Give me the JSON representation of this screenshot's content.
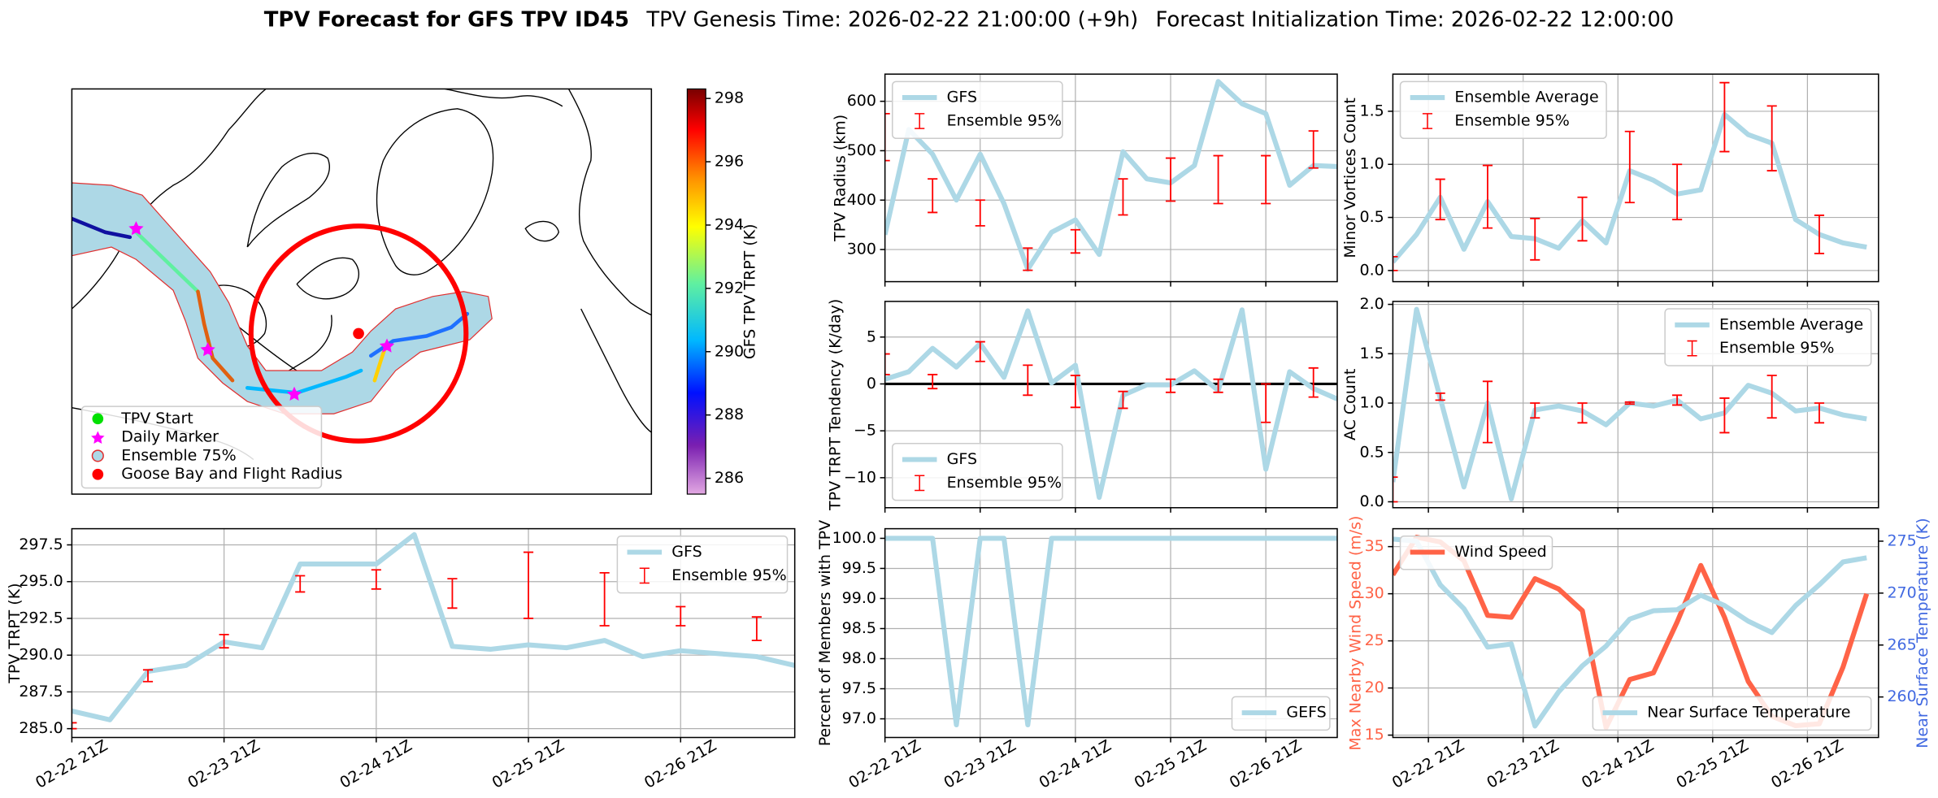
{
  "title": {
    "main": "TPV Forecast for GFS TPV ID45",
    "genesis": "TPV Genesis Time: 2026-02-22 21:00:00 (+9h)",
    "init": "Forecast Initialization Time: 2026-02-22 12:00:00"
  },
  "chart_data": [
    {
      "type": "map",
      "legend": [
        "TPV Start",
        "Daily Marker",
        "Ensemble 75%",
        "Goose Bay and Flight Radius"
      ],
      "colorbar": {
        "label": "GFS TPV TRPT (K)",
        "lim": [
          285.5,
          298.3
        ],
        "ticks": [
          286,
          288,
          290,
          292,
          294,
          296,
          298
        ]
      }
    },
    {
      "type": "line",
      "ylabel": "TPV TRPT (K)",
      "grid": true,
      "legend": "upper right",
      "xlim": [
        "02-22 21Z",
        "02-27 15Z"
      ],
      "xticks": [
        "02-22 21Z",
        "02-23 21Z",
        "02-24 21Z",
        "02-25 21Z",
        "02-26 21Z"
      ],
      "ylim": [
        284.4,
        298.6
      ],
      "yticks": [
        {
          "value": 285,
          "label": "285.0"
        },
        {
          "value": 287.5,
          "label": "287.5"
        },
        {
          "value": 290,
          "label": "290.0"
        },
        {
          "value": 292.5,
          "label": "292.5"
        },
        {
          "value": 295,
          "label": "295.0"
        },
        {
          "value": 297.5,
          "label": "297.5"
        }
      ],
      "x": [
        "02-22 21Z",
        "02-23 03Z",
        "02-23 09Z",
        "02-23 15Z",
        "02-23 21Z",
        "02-24 03Z",
        "02-24 09Z",
        "02-24 15Z",
        "02-24 21Z",
        "02-25 03Z",
        "02-25 09Z",
        "02-25 15Z",
        "02-25 21Z",
        "02-26 03Z",
        "02-26 09Z",
        "02-26 15Z",
        "02-26 21Z",
        "02-27 03Z",
        "02-27 09Z",
        "02-27 15Z"
      ],
      "series": [
        {
          "name": "GFS",
          "color": "#add8e6",
          "values": [
            286.2,
            285.6,
            288.9,
            289.3,
            290.9,
            290.5,
            296.2,
            296.2,
            296.2,
            298.2,
            290.6,
            290.4,
            290.7,
            290.5,
            291.0,
            289.9,
            290.3,
            290.1,
            289.9,
            289.3
          ]
        }
      ],
      "ensemble": {
        "name": "Ensemble 95%",
        "color": "#ff0000",
        "x": [
          "02-22 21Z",
          "02-23 09Z",
          "02-23 21Z",
          "02-24 09Z",
          "02-24 21Z",
          "02-25 09Z",
          "02-25 21Z",
          "02-26 09Z",
          "02-26 21Z",
          "02-27 09Z"
        ],
        "low": [
          285.0,
          288.2,
          290.5,
          294.3,
          294.5,
          293.2,
          292.5,
          292.0,
          292.0,
          291.0
        ],
        "high": [
          285.4,
          289.0,
          291.4,
          295.4,
          295.8,
          295.2,
          297.0,
          295.6,
          293.3,
          292.6
        ]
      }
    },
    {
      "type": "line",
      "ylabel": "TPV Radius (km)",
      "grid": true,
      "legend": "upper left",
      "xlim": [
        "02-22 21Z",
        "02-27 15Z"
      ],
      "xticks": [
        "02-22 21Z",
        "02-23 21Z",
        "02-24 21Z",
        "02-25 21Z",
        "02-26 21Z"
      ],
      "ylim": [
        235,
        655
      ],
      "yticks": [
        300,
        400,
        500,
        600
      ],
      "x": [
        "02-22 21Z",
        "02-23 03Z",
        "02-23 09Z",
        "02-23 15Z",
        "02-23 21Z",
        "02-24 03Z",
        "02-24 09Z",
        "02-24 15Z",
        "02-24 21Z",
        "02-25 03Z",
        "02-25 09Z",
        "02-25 15Z",
        "02-25 21Z",
        "02-26 03Z",
        "02-26 09Z",
        "02-26 15Z",
        "02-26 21Z",
        "02-27 03Z",
        "02-27 09Z",
        "02-27 15Z"
      ],
      "series": [
        {
          "name": "GFS",
          "color": "#add8e6",
          "values": [
            330,
            543,
            493,
            400,
            493,
            393,
            260,
            335,
            360,
            290,
            498,
            443,
            435,
            470,
            640,
            595,
            575,
            430,
            470,
            468
          ]
        }
      ],
      "ensemble": {
        "name": "Ensemble 95%",
        "color": "#ff0000",
        "x": [
          "02-22 21Z",
          "02-23 09Z",
          "02-23 21Z",
          "02-24 09Z",
          "02-24 21Z",
          "02-25 09Z",
          "02-25 21Z",
          "02-26 09Z",
          "02-26 21Z",
          "02-27 09Z"
        ],
        "low": [
          480,
          375,
          348,
          258,
          293,
          370,
          398,
          393,
          393,
          465
        ],
        "high": [
          575,
          443,
          400,
          303,
          340,
          443,
          485,
          490,
          490,
          540
        ]
      }
    },
    {
      "type": "line",
      "ylabel": "TPV TRPT Tendency (K/day)",
      "grid": true,
      "legend": "lower left",
      "reference_line": 0,
      "xlim": [
        "02-22 21Z",
        "02-27 15Z"
      ],
      "xticks": [
        "02-22 21Z",
        "02-23 21Z",
        "02-24 21Z",
        "02-25 21Z",
        "02-26 21Z"
      ],
      "ylim": [
        -13.2,
        8.8
      ],
      "yticks": [
        5,
        0,
        {
          "value": -5,
          "label": "−5"
        },
        {
          "value": -10,
          "label": "−10"
        }
      ],
      "x": [
        "02-22 21Z",
        "02-23 03Z",
        "02-23 09Z",
        "02-23 15Z",
        "02-23 21Z",
        "02-24 03Z",
        "02-24 09Z",
        "02-24 15Z",
        "02-24 21Z",
        "02-25 03Z",
        "02-25 09Z",
        "02-25 15Z",
        "02-25 21Z",
        "02-26 03Z",
        "02-26 09Z",
        "02-26 15Z",
        "02-26 21Z",
        "02-27 03Z",
        "02-27 09Z",
        "02-27 15Z"
      ],
      "series": [
        {
          "name": "GFS",
          "color": "#add8e6",
          "values": [
            0.5,
            1.3,
            3.8,
            1.8,
            4.3,
            0.7,
            7.8,
            0.1,
            2.0,
            -12.1,
            -1.2,
            -0.1,
            -0.1,
            1.4,
            -0.7,
            7.9,
            -9.1,
            1.3,
            -0.5,
            -1.6
          ]
        }
      ],
      "ensemble": {
        "name": "Ensemble 95%",
        "color": "#ff0000",
        "x": [
          "02-22 21Z",
          "02-23 09Z",
          "02-23 21Z",
          "02-24 09Z",
          "02-24 21Z",
          "02-25 09Z",
          "02-25 21Z",
          "02-26 09Z",
          "02-26 21Z",
          "02-27 09Z"
        ],
        "low": [
          1.0,
          -0.5,
          2.4,
          -1.2,
          -2.5,
          -2.6,
          -0.9,
          -0.9,
          -4.1,
          -1.4
        ],
        "high": [
          3.2,
          1.0,
          4.5,
          2.0,
          0.9,
          -0.8,
          0.5,
          0.5,
          0.0,
          1.7
        ]
      }
    },
    {
      "type": "line",
      "ylabel": "Percent of Members with TPV",
      "grid": true,
      "legend": "lower right",
      "xlim": [
        "02-22 21Z",
        "02-27 15Z"
      ],
      "xticks": [
        "02-22 21Z",
        "02-23 21Z",
        "02-24 21Z",
        "02-25 21Z",
        "02-26 21Z"
      ],
      "ylim": [
        96.69,
        100.16
      ],
      "yticks": [
        {
          "value": 97,
          "label": "97.0"
        },
        {
          "value": 97.5,
          "label": "97.5"
        },
        {
          "value": 98,
          "label": "98.0"
        },
        {
          "value": 98.5,
          "label": "98.5"
        },
        {
          "value": 99,
          "label": "99.0"
        },
        {
          "value": 99.5,
          "label": "99.5"
        },
        {
          "value": 100,
          "label": "100.0"
        }
      ],
      "x": [
        "02-22 21Z",
        "02-23 03Z",
        "02-23 09Z",
        "02-23 15Z",
        "02-23 21Z",
        "02-24 03Z",
        "02-24 09Z",
        "02-24 15Z",
        "02-24 21Z",
        "02-25 03Z",
        "02-25 09Z",
        "02-25 15Z",
        "02-25 21Z",
        "02-26 03Z",
        "02-26 09Z",
        "02-26 15Z",
        "02-26 21Z",
        "02-27 03Z",
        "02-27 09Z",
        "02-27 15Z"
      ],
      "series": [
        {
          "name": "GEFS",
          "color": "#add8e6",
          "values": [
            100,
            100,
            100,
            96.9,
            100,
            100,
            96.9,
            100,
            100,
            100,
            100,
            100,
            100,
            100,
            100,
            100,
            100,
            100,
            100,
            100
          ]
        }
      ]
    },
    {
      "type": "line",
      "ylabel": "Minor Vortices Count",
      "grid": true,
      "legend": "upper left",
      "xlim": [
        "02-22 12Z",
        "02-27 15Z"
      ],
      "xticks": [
        "02-22 21Z",
        "02-23 21Z",
        "02-24 21Z",
        "02-25 21Z",
        "02-26 21Z"
      ],
      "ylim": [
        -0.105,
        1.85
      ],
      "yticks": [
        {
          "value": 0,
          "label": "0.0"
        },
        {
          "value": 0.5,
          "label": "0.5"
        },
        {
          "value": 1,
          "label": "1.0"
        },
        {
          "value": 1.5,
          "label": "1.5"
        }
      ],
      "x": [
        "02-22 12Z",
        "02-22 18Z",
        "02-23 00Z",
        "02-23 06Z",
        "02-23 12Z",
        "02-23 18Z",
        "02-24 00Z",
        "02-24 06Z",
        "02-24 12Z",
        "02-24 18Z",
        "02-25 00Z",
        "02-25 06Z",
        "02-25 12Z",
        "02-25 18Z",
        "02-26 00Z",
        "02-26 06Z",
        "02-26 12Z",
        "02-26 18Z",
        "02-27 00Z",
        "02-27 06Z",
        "02-27 12Z"
      ],
      "series": [
        {
          "name": "Ensemble Average",
          "color": "#add8e6",
          "values": [
            0.08,
            0.34,
            0.69,
            0.2,
            0.65,
            0.32,
            0.3,
            0.21,
            0.47,
            0.26,
            0.94,
            0.85,
            0.72,
            0.76,
            1.47,
            1.28,
            1.2,
            0.48,
            0.34,
            0.26,
            0.22
          ]
        }
      ],
      "ensemble": {
        "name": "Ensemble 95%",
        "color": "#ff0000",
        "x": [
          "02-22 12Z",
          "02-23 00Z",
          "02-23 12Z",
          "02-24 00Z",
          "02-24 12Z",
          "02-25 00Z",
          "02-25 12Z",
          "02-26 00Z",
          "02-26 12Z",
          "02-27 00Z"
        ],
        "low": [
          0.0,
          0.48,
          0.4,
          0.1,
          0.28,
          0.64,
          0.48,
          1.12,
          0.94,
          0.16
        ],
        "high": [
          0.13,
          0.86,
          0.99,
          0.49,
          0.69,
          1.31,
          1.0,
          1.77,
          1.55,
          0.52
        ]
      }
    },
    {
      "type": "line",
      "ylabel": "AC Count",
      "grid": true,
      "legend": "upper right",
      "xlim": [
        "02-22 12Z",
        "02-27 15Z"
      ],
      "xticks": [
        "02-22 21Z",
        "02-23 21Z",
        "02-24 21Z",
        "02-25 21Z",
        "02-26 21Z"
      ],
      "ylim": [
        -0.06,
        2.03
      ],
      "yticks": [
        {
          "value": 0,
          "label": "0.0"
        },
        {
          "value": 0.5,
          "label": "0.5"
        },
        {
          "value": 1,
          "label": "1.0"
        },
        {
          "value": 1.5,
          "label": "1.5"
        },
        {
          "value": 2,
          "label": "2.0"
        }
      ],
      "x": [
        "02-22 12Z",
        "02-22 18Z",
        "02-23 00Z",
        "02-23 06Z",
        "02-23 12Z",
        "02-23 18Z",
        "02-24 00Z",
        "02-24 06Z",
        "02-24 12Z",
        "02-24 18Z",
        "02-25 00Z",
        "02-25 06Z",
        "02-25 12Z",
        "02-25 18Z",
        "02-26 00Z",
        "02-26 06Z",
        "02-26 12Z",
        "02-26 18Z",
        "02-27 00Z",
        "02-27 06Z",
        "02-27 12Z"
      ],
      "series": [
        {
          "name": "Ensemble Average",
          "color": "#add8e6",
          "values": [
            0.2,
            1.95,
            1.05,
            0.15,
            1.0,
            0.03,
            0.93,
            0.97,
            0.92,
            0.78,
            1.0,
            0.97,
            1.03,
            0.84,
            0.9,
            1.18,
            1.1,
            0.92,
            0.95,
            0.88,
            0.84
          ]
        }
      ],
      "ensemble": {
        "name": "Ensemble 95%",
        "color": "#ff0000",
        "x": [
          "02-22 12Z",
          "02-23 00Z",
          "02-23 12Z",
          "02-24 00Z",
          "02-24 12Z",
          "02-25 00Z",
          "02-25 12Z",
          "02-26 00Z",
          "02-26 12Z",
          "02-27 00Z"
        ],
        "low": [
          0.0,
          1.03,
          0.6,
          0.85,
          0.8,
          0.99,
          0.98,
          0.7,
          0.85,
          0.8
        ],
        "high": [
          0.25,
          1.1,
          1.22,
          1.0,
          1.0,
          1.01,
          1.08,
          1.05,
          1.28,
          1.0
        ]
      }
    },
    {
      "type": "line",
      "ylabel": "Max Nearby Wind Speed (m/s)",
      "y2label": "Near Surface Temperature (K)",
      "ycolor": "#ff6347",
      "y2color": "#4169e1",
      "grid": true,
      "xlim": [
        "02-22 12Z",
        "02-27 15Z"
      ],
      "xticks": [
        "02-22 21Z",
        "02-23 21Z",
        "02-24 21Z",
        "02-25 21Z",
        "02-26 21Z"
      ],
      "ylim": [
        14.75,
        36.9
      ],
      "yticks": [
        15,
        20,
        25,
        30,
        35
      ],
      "y2lim": [
        256.1,
        276.2
      ],
      "y2ticks": [
        260,
        265,
        270,
        275
      ],
      "x": [
        "02-22 12Z",
        "02-22 18Z",
        "02-23 00Z",
        "02-23 06Z",
        "02-23 12Z",
        "02-23 18Z",
        "02-24 00Z",
        "02-24 06Z",
        "02-24 12Z",
        "02-24 18Z",
        "02-25 00Z",
        "02-25 06Z",
        "02-25 12Z",
        "02-25 18Z",
        "02-26 00Z",
        "02-26 06Z",
        "02-26 12Z",
        "02-26 18Z",
        "02-27 00Z",
        "02-27 06Z",
        "02-27 12Z"
      ],
      "series": [
        {
          "name": "Wind Speed",
          "color": "#ff6347",
          "legend": "upper left",
          "values": [
            32,
            36,
            35.5,
            33.5,
            27.7,
            27.5,
            31.6,
            30.5,
            28.2,
            15.8,
            20.9,
            21.6,
            27,
            33,
            27.5,
            20.7,
            17,
            16,
            16.2,
            22.2,
            30
          ]
        },
        {
          "name": "Near Surface Temperature",
          "color": "#add8e6",
          "axis": "y2",
          "legend": "lower right",
          "values": [
            275.2,
            275.0,
            270.8,
            268.5,
            264.8,
            265.1,
            257.2,
            260.5,
            263,
            264.9,
            267.5,
            268.3,
            268.4,
            269.8,
            268.8,
            267.3,
            266.2,
            268.8,
            270.8,
            273,
            273.4
          ]
        }
      ]
    }
  ]
}
